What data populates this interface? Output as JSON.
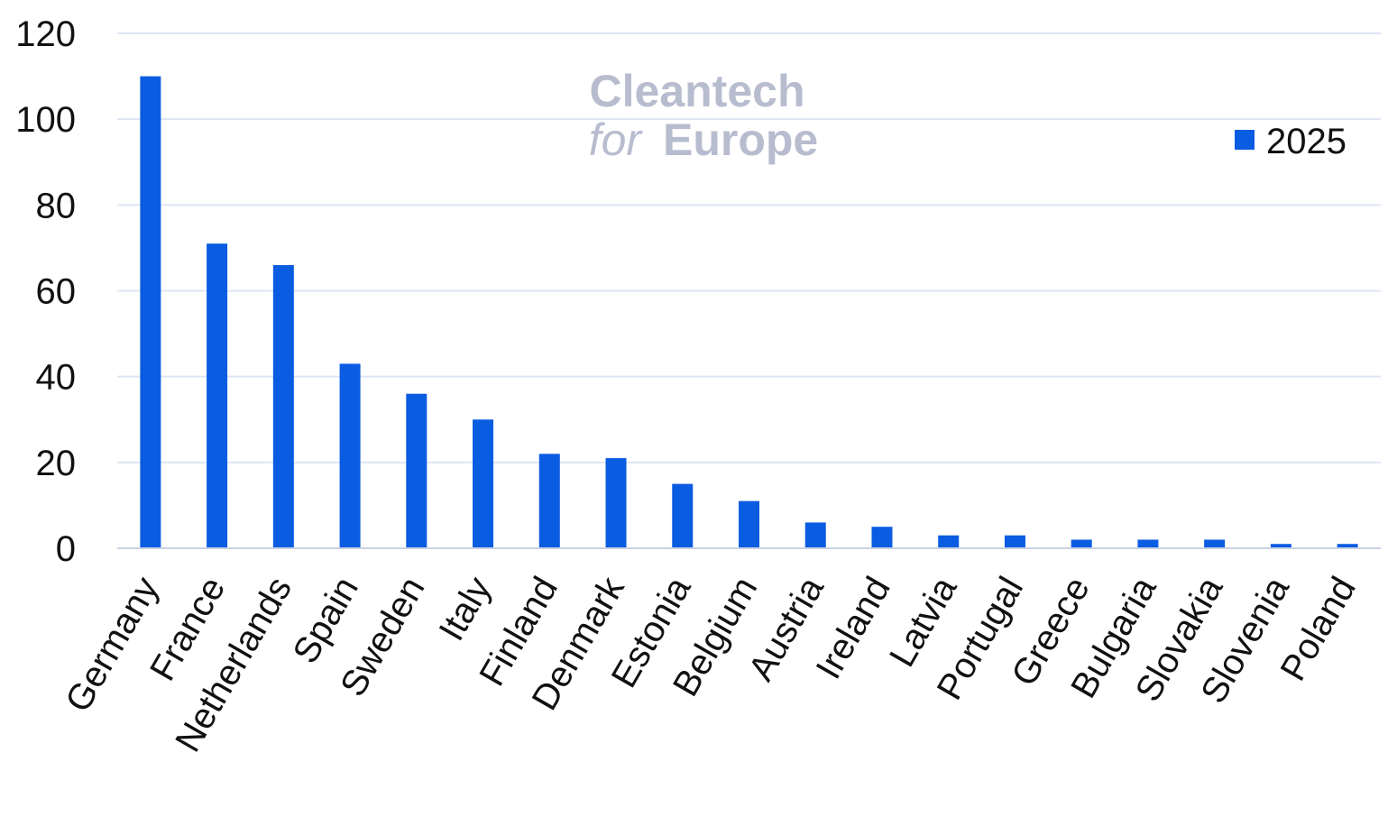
{
  "watermark": {
    "line1": "Cleantech",
    "line2_italic": "for",
    "line2_bold": "Europe",
    "color": "#b8bccf"
  },
  "chart_data": {
    "type": "bar",
    "categories": [
      "Germany",
      "France",
      "Netherlands",
      "Spain",
      "Sweden",
      "Italy",
      "Finland",
      "Denmark",
      "Estonia",
      "Belgium",
      "Austria",
      "Ireland",
      "Latvia",
      "Portugal",
      "Greece",
      "Bulgaria",
      "Slovakia",
      "Slovenia",
      "Poland"
    ],
    "series": [
      {
        "name": "2025",
        "color": "#0a5ce1",
        "values": [
          110,
          71,
          66,
          43,
          36,
          30,
          22,
          21,
          15,
          11,
          6,
          5,
          3,
          3,
          2,
          2,
          2,
          1,
          1
        ]
      }
    ],
    "title": "",
    "xlabel": "",
    "ylabel": "",
    "ylim": [
      0,
      120
    ],
    "yticks": [
      0,
      20,
      40,
      60,
      80,
      100,
      120
    ],
    "grid": true,
    "gridColor": "#dde5f5",
    "legend": "top-right"
  }
}
